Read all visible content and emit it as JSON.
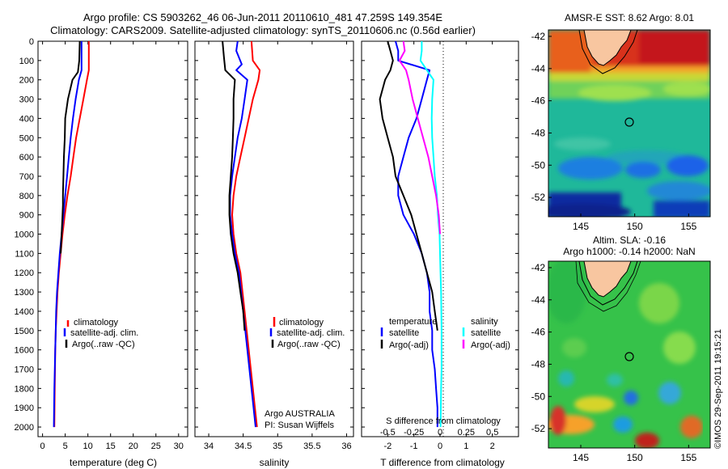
{
  "header": {
    "line1": "Argo profile: CS 5903262_46 06-Jun-2011 20110610_481 47.259S 149.354E",
    "line2": "Climatology: CARS2009. Satellite-adjusted climatology: synTS_20110606.nc (0.56d earlier)"
  },
  "colors": {
    "climatology": "#ff0000",
    "satellite": "#0000ff",
    "argo": "#000000",
    "satellite_diff": "#00ffff",
    "argo_diff_s": "#ff00ff"
  },
  "watermark": "©IMOS 29-Sep-2011 19:15:21",
  "chart_data": [
    {
      "type": "line",
      "id": "temperature",
      "xlabel": "temperature (deg C)",
      "ylabel": "",
      "xlim": [
        -1,
        32
      ],
      "ylim": [
        0,
        2050
      ],
      "x_ticks": [
        0,
        5,
        10,
        15,
        20,
        25,
        30
      ],
      "x_tick_labels": [
        "0",
        "5",
        "10",
        "15",
        "20",
        "25",
        "30"
      ],
      "y_ticks": [
        0,
        100,
        200,
        300,
        400,
        500,
        600,
        700,
        800,
        900,
        1000,
        1100,
        1200,
        1300,
        1400,
        1500,
        1600,
        1700,
        1800,
        1900,
        2000
      ],
      "y_tick_labels": [
        "0",
        "100",
        "200",
        "300",
        "400",
        "500",
        "600",
        "700",
        "800",
        "900",
        "1000",
        "1100",
        "1200",
        "1300",
        "1400",
        "1500",
        "1600",
        "1700",
        "1800",
        "1900",
        "2000"
      ],
      "legend": [
        "climatology",
        "satellite-adj. clim.",
        "Argo(..raw -QC)"
      ],
      "series": [
        {
          "name": "climatology",
          "color": "#ff0000",
          "depth": [
            0,
            150,
            200,
            300,
            400,
            500,
            600,
            700,
            800,
            900,
            1000,
            1100,
            1200,
            1300,
            1400,
            1500,
            1600,
            1800,
            2000
          ],
          "x": [
            10.2,
            10.2,
            9.8,
            9.0,
            8.2,
            7.4,
            6.8,
            6.2,
            5.5,
            4.9,
            4.4,
            4.0,
            3.6,
            3.3,
            3.1,
            2.9,
            2.8,
            2.7,
            2.6
          ]
        },
        {
          "name": "satellite-adj. clim.",
          "color": "#0000ff",
          "depth": [
            0,
            150,
            200,
            300,
            400,
            500,
            600,
            700,
            800,
            900,
            1000,
            1100,
            1200,
            1300,
            1400,
            1500,
            1600,
            1800,
            2000
          ],
          "x": [
            8.6,
            8.6,
            8.0,
            7.3,
            6.7,
            6.2,
            5.8,
            5.4,
            5.0,
            4.6,
            4.2,
            3.8,
            3.5,
            3.2,
            3.0,
            2.9,
            2.8,
            2.6,
            2.5
          ]
        },
        {
          "name": "Argo(..raw -QC)",
          "color": "#000000",
          "depth": [
            0,
            100,
            160,
            200,
            300,
            400,
            500,
            600,
            700,
            800,
            850,
            900,
            1000,
            1100
          ],
          "x": [
            8.2,
            8.1,
            7.8,
            6.6,
            5.6,
            5.0,
            4.9,
            4.7,
            4.6,
            4.5,
            4.5,
            4.4,
            4.2,
            4.0
          ]
        }
      ]
    },
    {
      "type": "line",
      "id": "salinity",
      "xlabel": "salinity",
      "xlim": [
        33.8,
        36.1
      ],
      "ylim": [
        0,
        2050
      ],
      "x_ticks": [
        34,
        34.5,
        35,
        35.5,
        36
      ],
      "x_tick_labels": [
        "34",
        "34.5",
        "35",
        "35.5",
        "36"
      ],
      "legend": [
        "climatology",
        "satellite-adj. clim.",
        "Argo(..raw -QC)"
      ],
      "annotation_line1": "Argo AUSTRALIA",
      "annotation_line2": "PI: Susan Wijffels",
      "series": [
        {
          "name": "climatology",
          "color": "#ff0000",
          "depth": [
            0,
            100,
            150,
            200,
            300,
            400,
            500,
            600,
            700,
            800,
            900,
            1000,
            1100,
            1200,
            1400,
            1600,
            1800,
            2000
          ],
          "x": [
            34.62,
            34.64,
            34.74,
            34.72,
            34.64,
            34.58,
            34.52,
            34.46,
            34.4,
            34.36,
            34.34,
            34.36,
            34.4,
            34.46,
            34.52,
            34.58,
            34.64,
            34.7
          ]
        },
        {
          "name": "satellite-adj. clim.",
          "color": "#0000ff",
          "depth": [
            0,
            50,
            120,
            150,
            200,
            300,
            400,
            500,
            600,
            700,
            800,
            900,
            1000,
            1100,
            1200,
            1400,
            1600,
            1800,
            2000
          ],
          "x": [
            34.42,
            34.4,
            34.48,
            34.4,
            34.56,
            34.52,
            34.48,
            34.42,
            34.38,
            34.34,
            34.31,
            34.31,
            34.34,
            34.38,
            34.44,
            34.5,
            34.56,
            34.62,
            34.68
          ]
        },
        {
          "name": "Argo(..raw -QC)",
          "color": "#000000",
          "depth": [
            0,
            80,
            150,
            200,
            300,
            400,
            500,
            600,
            700,
            800,
            900,
            1000,
            1100,
            1200,
            1300,
            1400,
            1500
          ],
          "x": [
            34.2,
            34.22,
            34.24,
            34.38,
            34.36,
            34.36,
            34.35,
            34.34,
            34.32,
            34.3,
            34.3,
            34.32,
            34.36,
            34.42,
            34.46,
            34.5,
            34.52
          ]
        }
      ]
    },
    {
      "type": "line",
      "id": "difference",
      "xlabel": "T difference from climatology",
      "xlabel_top": "S difference from climatology",
      "xlim": [
        -3,
        3
      ],
      "ylim": [
        0,
        2050
      ],
      "x_ticks": [
        -2,
        -1,
        0,
        1,
        2
      ],
      "x_tick_labels": [
        "-2",
        "-1",
        "0",
        "1",
        "2"
      ],
      "s_ticks": [
        -0.5,
        -0.25,
        0,
        0.25,
        0.5
      ],
      "s_tick_labels": [
        "-0.5",
        "-0.25",
        "0",
        "0.25",
        "0.5"
      ],
      "legend_temperature_title": "temperature",
      "legend_salinity_title": "salinity",
      "legend": [
        "satellite",
        "Argo(-adj)",
        "satellite",
        "Argo(-adj)"
      ],
      "series": [
        {
          "name": "satellite",
          "group": "temperature",
          "color": "#0000ff",
          "depth": [
            0,
            50,
            100,
            150,
            200,
            300,
            400,
            500,
            600,
            700,
            800,
            900,
            1000,
            1100,
            1200,
            1300,
            1400,
            1500,
            1600,
            1700,
            1800,
            1900,
            2000
          ],
          "x": [
            -1.7,
            -1.6,
            -1.6,
            -0.4,
            -0.5,
            -0.7,
            -0.9,
            -1.2,
            -1.4,
            -1.6,
            -1.6,
            -1.4,
            -1.0,
            -0.7,
            -0.5,
            -0.4,
            -0.4,
            -0.3,
            -0.3,
            -0.2,
            -0.15,
            -0.1,
            -0.1
          ]
        },
        {
          "name": "Argo(-adj)",
          "group": "temperature",
          "color": "#000000",
          "depth": [
            0,
            50,
            100,
            150,
            200,
            300,
            400,
            500,
            600,
            700,
            800,
            900,
            1000,
            1100,
            1200,
            1300,
            1400,
            1500
          ],
          "x": [
            -2.0,
            -1.9,
            -1.8,
            -1.9,
            -2.1,
            -2.3,
            -2.2,
            -2.0,
            -1.8,
            -1.7,
            -1.4,
            -1.1,
            -0.9,
            -0.7,
            -0.5,
            -0.3,
            -0.2,
            -0.1
          ]
        },
        {
          "name": "satellite",
          "group": "salinity",
          "color": "#00ffff",
          "depth": [
            0,
            50,
            100,
            150,
            200,
            300,
            400,
            500,
            600,
            700,
            800,
            900,
            1000,
            1100,
            1200,
            1300,
            1400,
            1500,
            1600,
            1700,
            1800,
            1900,
            2000
          ],
          "x": [
            -0.7,
            -0.7,
            -0.75,
            -0.5,
            -0.25,
            -0.3,
            -0.32,
            -0.3,
            -0.25,
            -0.2,
            -0.12,
            -0.08,
            -0.02,
            0.0,
            0.02,
            0.04,
            0.05,
            0.06,
            0.06,
            0.06,
            0.04,
            0.03,
            0.02
          ]
        },
        {
          "name": "Argo(-adj)",
          "group": "salinity",
          "color": "#ff00ff",
          "depth": [
            0,
            50,
            100,
            150,
            200,
            300,
            400,
            500,
            600,
            700,
            800,
            900,
            1000
          ],
          "x": [
            -1.4,
            -1.35,
            -1.55,
            -1.3,
            -1.2,
            -1.05,
            -0.85,
            -0.65,
            -0.45,
            -0.3,
            -0.15,
            -0.05,
            0.0
          ]
        }
      ]
    }
  ],
  "maps": [
    {
      "id": "sst",
      "title": "AMSR-E SST: 8.62 Argo: 8.01",
      "x_ticks": [
        145,
        150,
        155
      ],
      "y_ticks": [
        -42,
        -44,
        -46,
        -48,
        -50,
        -52
      ],
      "xlim": [
        142,
        157
      ],
      "ylim": [
        -53.2,
        -41.6
      ],
      "argo_position": [
        149.354,
        -47.259
      ]
    },
    {
      "id": "sla",
      "title_line1": "Altim. SLA: -0.16",
      "title_line2": "Argo h1000: -0.14 h2000: NaN",
      "x_ticks": [
        145,
        150,
        155
      ],
      "y_ticks": [
        -42,
        -44,
        -46,
        -48,
        -50,
        -52
      ],
      "xlim": [
        142,
        157
      ],
      "ylim": [
        -53.2,
        -41.6
      ],
      "argo_position": [
        149.354,
        -47.259
      ]
    }
  ]
}
